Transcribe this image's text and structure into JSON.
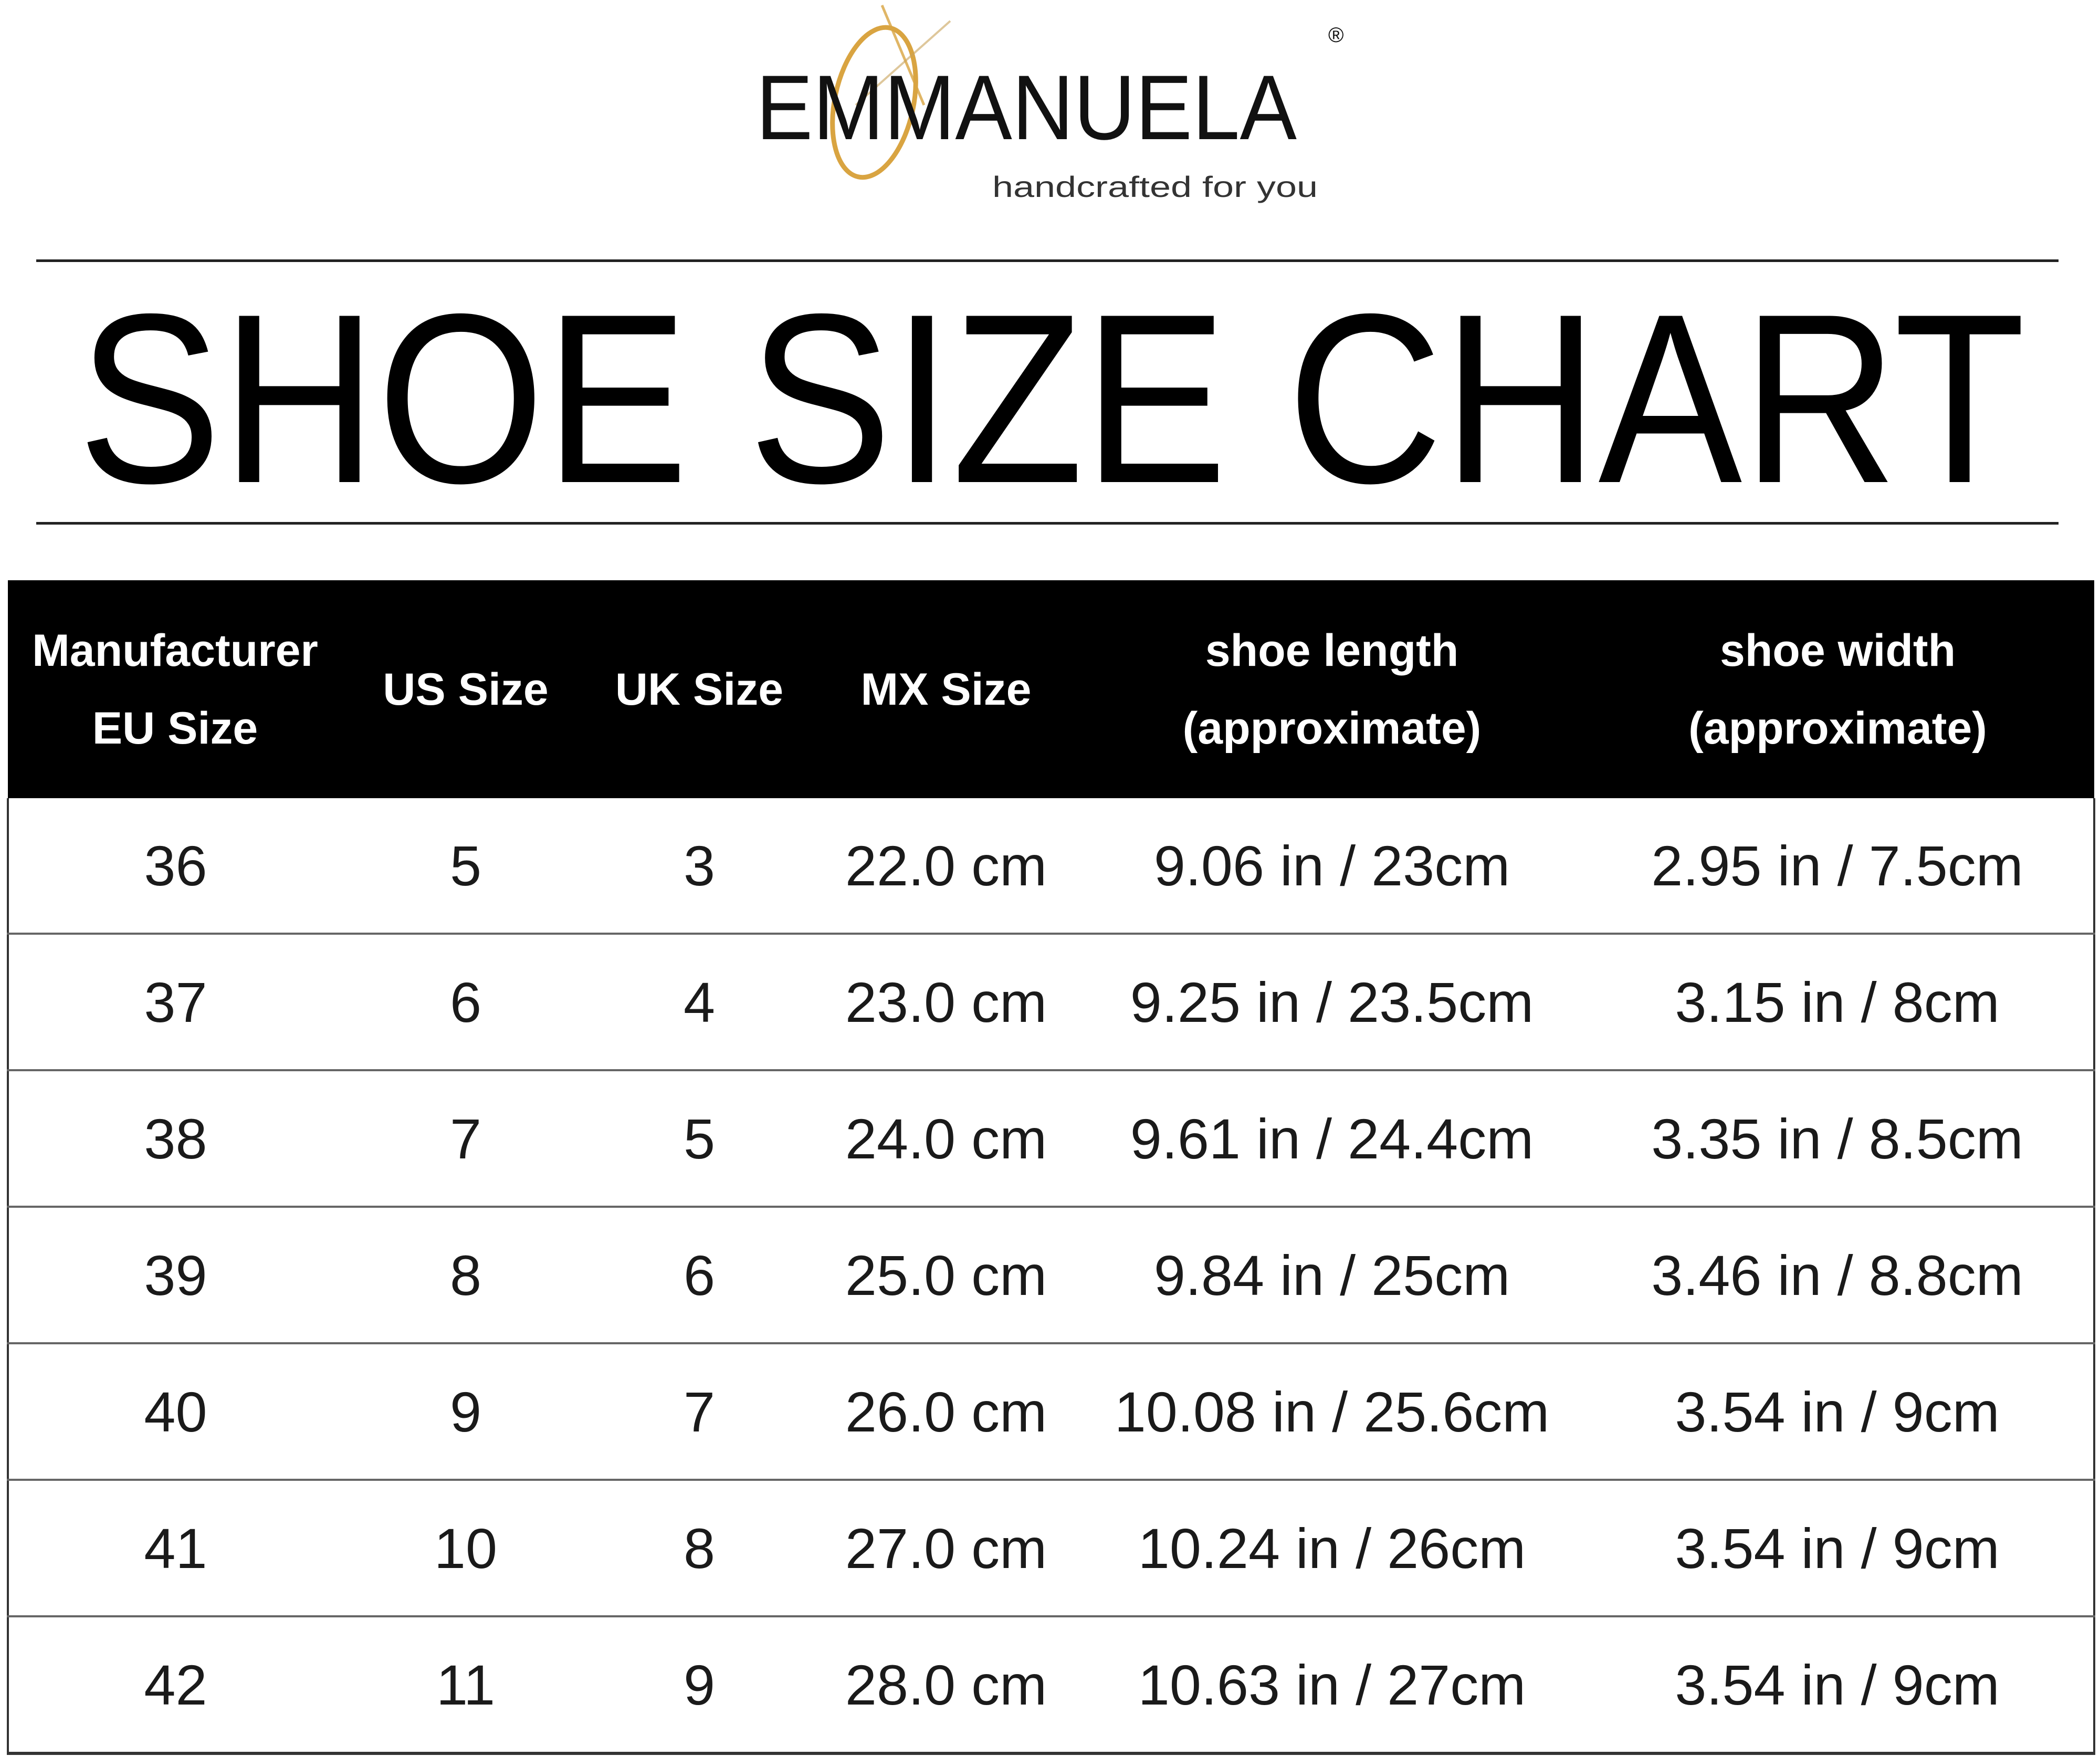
{
  "logo": {
    "brand": "EMMANUELA",
    "registered": "®",
    "tagline": "handcrafted for you",
    "accent_color": "#d9a441"
  },
  "title": "SHOE SIZE CHART",
  "table": {
    "headers": [
      [
        "Manufacturer",
        "EU Size"
      ],
      [
        "US Size"
      ],
      [
        "UK Size"
      ],
      [
        "MX Size"
      ],
      [
        "shoe length",
        "(approximate)"
      ],
      [
        "shoe width",
        "(approximate)"
      ]
    ],
    "rows": [
      [
        "36",
        "5",
        "3",
        "22.0 cm",
        "9.06 in / 23cm",
        "2.95 in / 7.5cm"
      ],
      [
        "37",
        "6",
        "4",
        "23.0 cm",
        "9.25 in / 23.5cm",
        "3.15 in / 8cm"
      ],
      [
        "38",
        "7",
        "5",
        "24.0 cm",
        "9.61 in / 24.4cm",
        "3.35 in / 8.5cm"
      ],
      [
        "39",
        "8",
        "6",
        "25.0 cm",
        "9.84 in / 25cm",
        "3.46 in / 8.8cm"
      ],
      [
        "40",
        "9",
        "7",
        "26.0 cm",
        "10.08 in / 25.6cm",
        "3.54 in / 9cm"
      ],
      [
        "41",
        "10",
        "8",
        "27.0 cm",
        "10.24 in / 26cm",
        "3.54 in / 9cm"
      ],
      [
        "42",
        "11",
        "9",
        "28.0 cm",
        "10.63 in / 27cm",
        "3.54 in / 9cm"
      ]
    ]
  }
}
